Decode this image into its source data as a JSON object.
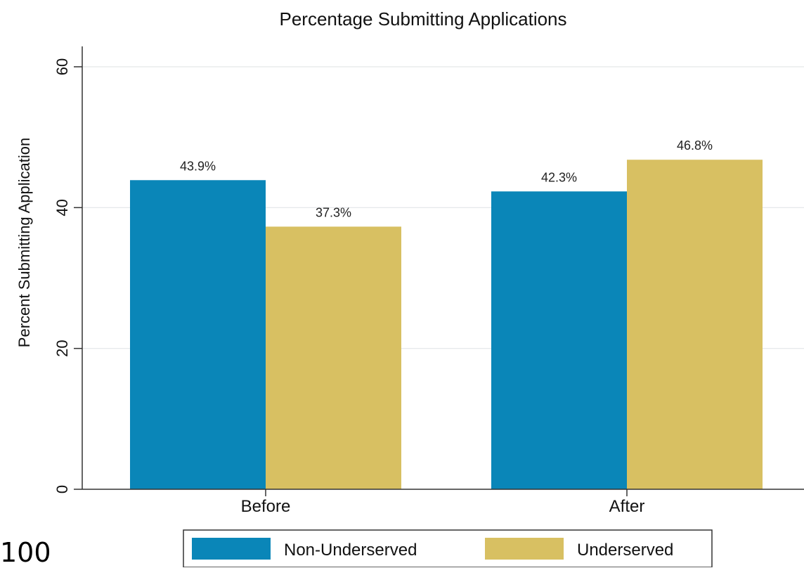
{
  "stray_text": "100",
  "chart_data": {
    "type": "bar",
    "title": "Percentage Submitting Applications",
    "xlabel": "",
    "ylabel": "Percent Submitting Application",
    "categories": [
      "Before",
      "After"
    ],
    "series": [
      {
        "name": "Non-Underserved",
        "values": [
          43.9,
          42.3
        ],
        "labels": [
          "43.9%",
          "42.3%"
        ],
        "color": "#0a86b8"
      },
      {
        "name": "Underserved",
        "values": [
          37.3,
          46.8
        ],
        "labels": [
          "37.3%",
          "46.8%"
        ],
        "color": "#d8c062"
      }
    ],
    "ylim": [
      0,
      60
    ],
    "yticks": [
      0,
      20,
      40,
      60
    ],
    "ytick_labels": [
      "0",
      "20",
      "40",
      "60"
    ],
    "grid": true,
    "legend": "bottom"
  }
}
